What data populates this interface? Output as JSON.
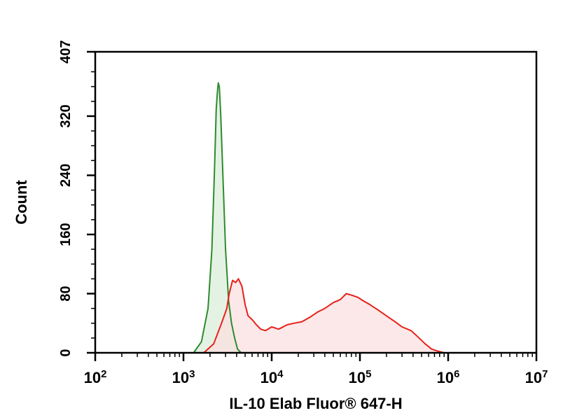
{
  "chart_data": {
    "type": "area",
    "title": "",
    "xlabel": "IL-10 Elab Fluor® 647-H",
    "ylabel": "Count",
    "x_scale": "log",
    "xlim": [
      100,
      10000000
    ],
    "ylim": [
      0,
      407
    ],
    "x_ticks": [
      {
        "value": 100,
        "base": "10",
        "exp": "2"
      },
      {
        "value": 1000,
        "base": "10",
        "exp": "3"
      },
      {
        "value": 10000,
        "base": "10",
        "exp": "4"
      },
      {
        "value": 100000,
        "base": "10",
        "exp": "5"
      },
      {
        "value": 1000000,
        "base": "10",
        "exp": "6"
      },
      {
        "value": 10000000,
        "base": "10",
        "exp": "7"
      }
    ],
    "y_ticks": [
      0,
      80,
      160,
      240,
      320,
      407
    ],
    "grid": false,
    "series": [
      {
        "color": "#2e8b2e",
        "fill": "#dbeedb",
        "x": [
          1300,
          1600,
          1900,
          2100,
          2250,
          2350,
          2420,
          2480,
          2550,
          2650,
          2800,
          3000,
          3250,
          3500,
          3800,
          4100,
          4500
        ],
        "y": [
          0,
          15,
          60,
          140,
          250,
          330,
          352,
          365,
          360,
          320,
          240,
          140,
          70,
          40,
          20,
          5,
          0
        ]
      },
      {
        "color": "#e8201a",
        "fill": "#fbe0e0",
        "x": [
          1700,
          2200,
          2700,
          3100,
          3300,
          3600,
          3900,
          4200,
          4600,
          5000,
          5400,
          6000,
          6700,
          7500,
          8500,
          10000,
          12000,
          15000,
          18000,
          22000,
          27000,
          33000,
          40000,
          50000,
          60000,
          70000,
          80000,
          95000,
          110000,
          130000,
          160000,
          200000,
          250000,
          300000,
          380000,
          450000,
          550000,
          650000,
          780000,
          900000,
          1000000
        ],
        "y": [
          0,
          12,
          40,
          60,
          80,
          98,
          95,
          100,
          90,
          65,
          50,
          45,
          38,
          32,
          30,
          35,
          32,
          38,
          40,
          42,
          48,
          55,
          60,
          68,
          72,
          80,
          78,
          75,
          70,
          65,
          58,
          50,
          42,
          35,
          30,
          22,
          12,
          5,
          2,
          0,
          0
        ]
      }
    ]
  }
}
